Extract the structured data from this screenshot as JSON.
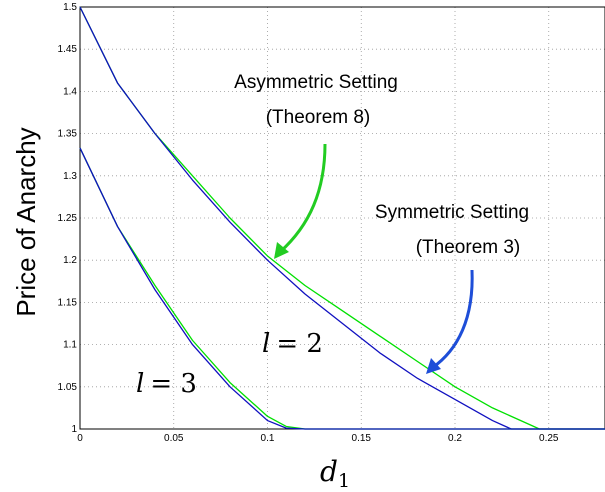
{
  "chart_data": {
    "type": "line",
    "xlabel": "d",
    "xlabel_sub": "1",
    "ylabel": "Price of Anarchy",
    "xlim": [
      0,
      0.28
    ],
    "ylim": [
      1,
      1.5
    ],
    "grid": true,
    "x_ticks": [
      0,
      0.05,
      0.1,
      0.15,
      0.2,
      0.25
    ],
    "x_tick_labels": [
      "0",
      "0.05",
      "0.1",
      "0.15",
      "0.2",
      "0.25"
    ],
    "y_ticks": [
      1,
      1.05,
      1.1,
      1.15,
      1.2,
      1.25,
      1.3,
      1.35,
      1.4,
      1.45,
      1.5
    ],
    "y_tick_labels": [
      "1",
      "1.05",
      "1.1",
      "1.15",
      "1.2",
      "1.25",
      "1.3",
      "1.35",
      "1.4",
      "1.45",
      "1.5"
    ],
    "series": [
      {
        "color": "#00e000",
        "x": [
          0,
          0.02,
          0.04,
          0.06,
          0.08,
          0.1,
          0.12,
          0.14,
          0.16,
          0.18,
          0.2,
          0.22,
          0.24,
          0.245,
          0.28
        ],
        "y": [
          1.5,
          1.41,
          1.35,
          1.3,
          1.25,
          1.205,
          1.17,
          1.14,
          1.11,
          1.08,
          1.05,
          1.025,
          1.005,
          1.0,
          1.0
        ]
      },
      {
        "color": "#1010c0",
        "x": [
          0,
          0.02,
          0.04,
          0.06,
          0.08,
          0.1,
          0.12,
          0.14,
          0.16,
          0.18,
          0.2,
          0.22,
          0.23,
          0.28
        ],
        "y": [
          1.5,
          1.41,
          1.35,
          1.295,
          1.245,
          1.2,
          1.16,
          1.125,
          1.09,
          1.06,
          1.035,
          1.01,
          1.0,
          1.0
        ]
      },
      {
        "color": "#00e000",
        "x": [
          0,
          0.02,
          0.04,
          0.06,
          0.08,
          0.1,
          0.11,
          0.12,
          0.28
        ],
        "y": [
          1.333,
          1.24,
          1.17,
          1.105,
          1.055,
          1.015,
          1.003,
          1.0,
          1.0
        ]
      },
      {
        "color": "#1010c0",
        "x": [
          0,
          0.02,
          0.04,
          0.06,
          0.08,
          0.1,
          0.11,
          0.12,
          0.28
        ],
        "y": [
          1.333,
          1.24,
          1.165,
          1.1,
          1.05,
          1.01,
          1.001,
          1.0,
          1.0
        ]
      }
    ],
    "annotations": [
      {
        "lines": [
          "Asymmetric Setting",
          "(Theorem 8)"
        ],
        "color": "#22cc22"
      },
      {
        "lines": [
          "Symmetric Setting",
          "(Theorem 3)"
        ],
        "color": "#1e4ed8"
      }
    ],
    "curve_labels": [
      {
        "var": "l",
        "eq": "= 2"
      },
      {
        "var": "l",
        "eq": "= 3"
      }
    ]
  }
}
